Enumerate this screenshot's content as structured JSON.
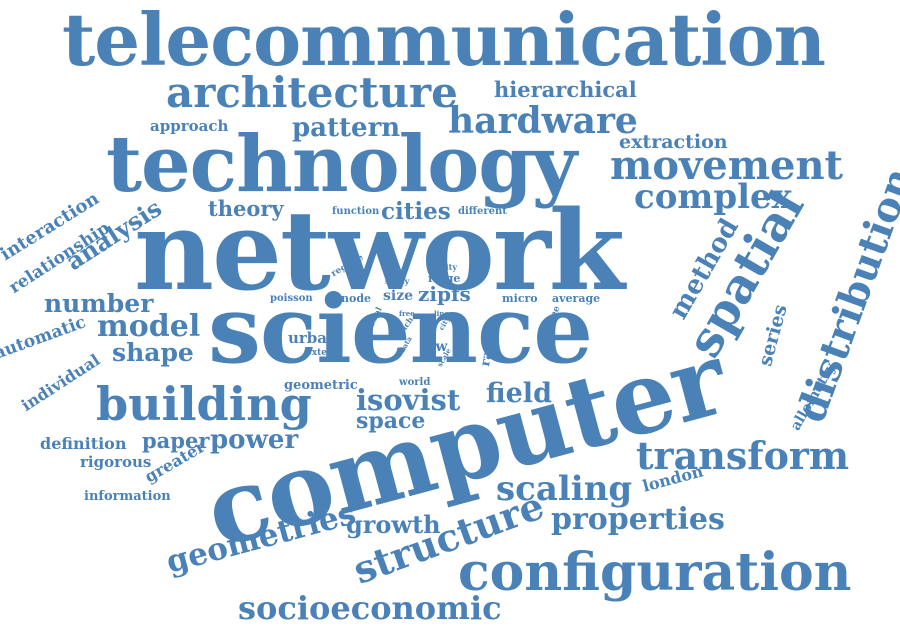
{
  "colors": {
    "text": "#4a82b8",
    "background": "#ffffff"
  },
  "words": {
    "telecommunication": "telecommunication",
    "architecture": "architecture",
    "hierarchical": "hierarchical",
    "approach": "approach",
    "pattern": "pattern",
    "hardware": "hardware",
    "technology": "technology",
    "extraction": "extraction",
    "movement": "movement",
    "complex": "complex",
    "theory": "theory",
    "function": "function",
    "cities": "cities",
    "different": "different",
    "network": "network",
    "interaction": "interaction",
    "relationship": "relationship",
    "analysis": "analysis",
    "method": "method",
    "spatial": "spatial",
    "distribution": "distribution",
    "regime": "regime",
    "study": "study",
    "utility": "utility",
    "ridge": "ridge",
    "size": "size",
    "zipfs": "zipfs",
    "poisson": "poisson",
    "node": "node",
    "micro": "micro",
    "average": "average",
    "number": "number",
    "automatic": "automatic",
    "model": "model",
    "science": "science",
    "axial": "axial",
    "free": "free",
    "rich": "rich",
    "line": "line",
    "city": "city",
    "degree": "degree",
    "series": "series",
    "urban": "urban",
    "data": "data",
    "law": "law",
    "scale": "scale",
    "range": "range",
    "extend": "extend",
    "shape": "shape",
    "individual": "individual",
    "allometry": "allometry",
    "geometric": "geometric",
    "world": "world",
    "building": "building",
    "isovist": "isovist",
    "field": "field",
    "space": "space",
    "computer": "computer",
    "definition": "definition",
    "paper": "paper",
    "power": "power",
    "transform": "transform",
    "rigorous": "rigorous",
    "greater": "greater",
    "information": "information",
    "scaling": "scaling",
    "london": "london",
    "growth": "growth",
    "properties": "properties",
    "geometries": "geometries",
    "structure": "structure",
    "configuration": "configuration",
    "socioeconomic": "socioeconomic"
  }
}
